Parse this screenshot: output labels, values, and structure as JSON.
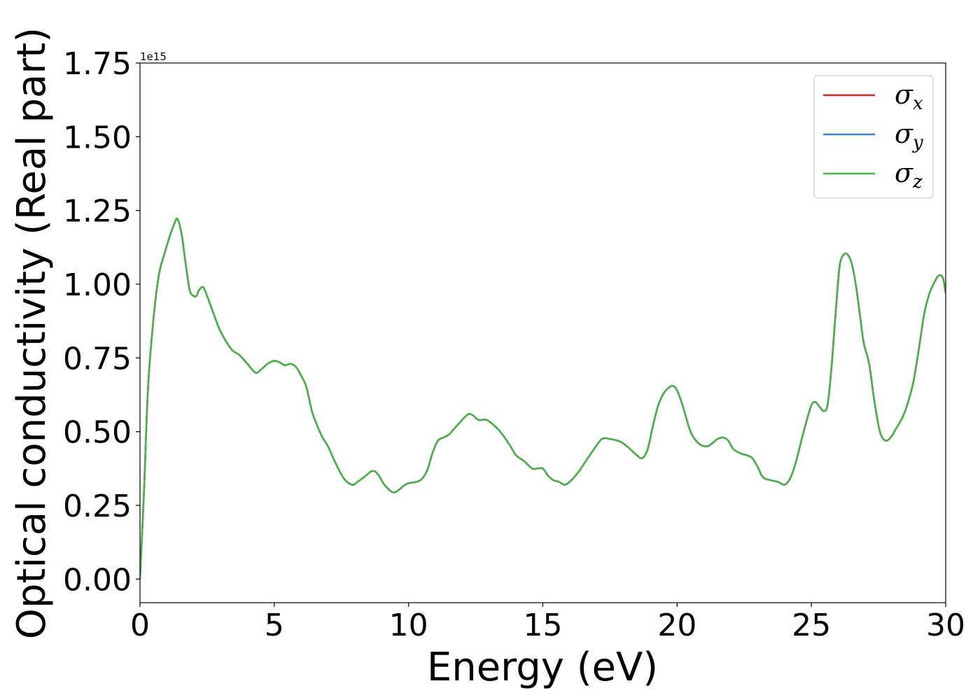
{
  "chart_data": {
    "type": "line",
    "xlabel": "Energy (eV)",
    "ylabel": "Optical conductivity (Real part)",
    "y_offset_text": "1e15",
    "xlim": [
      0,
      30
    ],
    "ylim": [
      -0.08,
      1.75
    ],
    "x_ticks": [
      0,
      5,
      10,
      15,
      20,
      25,
      30
    ],
    "x_tick_labels": [
      "0",
      "5",
      "10",
      "15",
      "20",
      "25",
      "30"
    ],
    "y_ticks": [
      0.0,
      0.25,
      0.5,
      0.75,
      1.0,
      1.25,
      1.5,
      1.75
    ],
    "y_tick_labels": [
      "0.00",
      "0.25",
      "0.50",
      "0.75",
      "1.00",
      "1.25",
      "1.50",
      "1.75"
    ],
    "grid": false,
    "legend_position": "top-right",
    "x": [
      0,
      0.15,
      0.3,
      0.5,
      0.7,
      0.9,
      1.1,
      1.3,
      1.4,
      1.55,
      1.7,
      1.85,
      2.0,
      2.1,
      2.2,
      2.35,
      2.5,
      2.7,
      3.0,
      3.4,
      3.7,
      4.0,
      4.3,
      4.5,
      4.75,
      5.0,
      5.2,
      5.4,
      5.6,
      5.8,
      6.0,
      6.2,
      6.4,
      6.6,
      6.8,
      7.0,
      7.3,
      7.6,
      7.9,
      8.1,
      8.4,
      8.6,
      8.75,
      8.9,
      9.1,
      9.4,
      9.6,
      9.8,
      10.0,
      10.3,
      10.5,
      10.7,
      10.9,
      11.1,
      11.3,
      11.5,
      11.7,
      11.9,
      12.1,
      12.25,
      12.4,
      12.6,
      12.9,
      13.2,
      13.5,
      13.8,
      14.0,
      14.3,
      14.6,
      14.8,
      15.0,
      15.2,
      15.4,
      15.6,
      15.8,
      16.0,
      16.3,
      16.6,
      16.9,
      17.2,
      17.5,
      17.9,
      18.2,
      18.5,
      18.7,
      18.9,
      19.1,
      19.3,
      19.5,
      19.7,
      19.85,
      20.0,
      20.2,
      20.5,
      20.8,
      21.1,
      21.3,
      21.5,
      21.7,
      21.9,
      22.1,
      22.4,
      22.6,
      22.8,
      23.0,
      23.2,
      23.5,
      23.75,
      24.0,
      24.2,
      24.4,
      24.6,
      24.8,
      25.0,
      25.15,
      25.3,
      25.45,
      25.6,
      25.75,
      25.9,
      26.05,
      26.2,
      26.35,
      26.5,
      26.65,
      26.8,
      26.95,
      27.15,
      27.35,
      27.55,
      27.75,
      27.95,
      28.15,
      28.4,
      28.6,
      28.8,
      29.0,
      29.2,
      29.4,
      29.6,
      29.75,
      29.9,
      30.0
    ],
    "series": [
      {
        "name": "σx",
        "color": "#d62728",
        "values": [
          0.0,
          0.3,
          0.65,
          0.88,
          1.03,
          1.1,
          1.16,
          1.21,
          1.22,
          1.17,
          1.07,
          0.98,
          0.96,
          0.96,
          0.98,
          0.99,
          0.96,
          0.91,
          0.84,
          0.78,
          0.76,
          0.73,
          0.7,
          0.71,
          0.73,
          0.74,
          0.735,
          0.725,
          0.73,
          0.72,
          0.69,
          0.65,
          0.57,
          0.52,
          0.48,
          0.45,
          0.39,
          0.34,
          0.32,
          0.33,
          0.35,
          0.365,
          0.365,
          0.35,
          0.32,
          0.295,
          0.3,
          0.315,
          0.325,
          0.33,
          0.34,
          0.37,
          0.43,
          0.47,
          0.48,
          0.49,
          0.51,
          0.53,
          0.55,
          0.56,
          0.555,
          0.54,
          0.54,
          0.52,
          0.49,
          0.45,
          0.42,
          0.4,
          0.375,
          0.375,
          0.375,
          0.35,
          0.335,
          0.33,
          0.32,
          0.33,
          0.36,
          0.4,
          0.44,
          0.475,
          0.475,
          0.465,
          0.445,
          0.42,
          0.41,
          0.44,
          0.52,
          0.59,
          0.63,
          0.65,
          0.655,
          0.64,
          0.59,
          0.5,
          0.46,
          0.45,
          0.46,
          0.475,
          0.48,
          0.47,
          0.44,
          0.425,
          0.42,
          0.41,
          0.38,
          0.345,
          0.335,
          0.33,
          0.32,
          0.34,
          0.39,
          0.46,
          0.53,
          0.59,
          0.6,
          0.585,
          0.57,
          0.59,
          0.72,
          0.9,
          1.06,
          1.1,
          1.1,
          1.07,
          1.0,
          0.9,
          0.8,
          0.73,
          0.6,
          0.5,
          0.47,
          0.48,
          0.51,
          0.55,
          0.6,
          0.67,
          0.78,
          0.9,
          0.97,
          1.01,
          1.03,
          1.02,
          0.97
        ]
      },
      {
        "name": "σy",
        "color": "#3a7dc1",
        "values": [
          0.0,
          0.3,
          0.65,
          0.88,
          1.03,
          1.1,
          1.16,
          1.21,
          1.22,
          1.17,
          1.07,
          0.98,
          0.96,
          0.96,
          0.98,
          0.99,
          0.96,
          0.91,
          0.84,
          0.78,
          0.76,
          0.73,
          0.7,
          0.71,
          0.73,
          0.74,
          0.735,
          0.725,
          0.73,
          0.72,
          0.69,
          0.65,
          0.57,
          0.52,
          0.48,
          0.45,
          0.39,
          0.34,
          0.32,
          0.33,
          0.35,
          0.365,
          0.365,
          0.35,
          0.32,
          0.295,
          0.3,
          0.315,
          0.325,
          0.33,
          0.34,
          0.37,
          0.43,
          0.47,
          0.48,
          0.49,
          0.51,
          0.53,
          0.55,
          0.56,
          0.555,
          0.54,
          0.54,
          0.52,
          0.49,
          0.45,
          0.42,
          0.4,
          0.375,
          0.375,
          0.375,
          0.35,
          0.335,
          0.33,
          0.32,
          0.33,
          0.36,
          0.4,
          0.44,
          0.475,
          0.475,
          0.465,
          0.445,
          0.42,
          0.41,
          0.44,
          0.52,
          0.59,
          0.63,
          0.65,
          0.655,
          0.64,
          0.59,
          0.5,
          0.46,
          0.45,
          0.46,
          0.475,
          0.48,
          0.47,
          0.44,
          0.425,
          0.42,
          0.41,
          0.38,
          0.345,
          0.335,
          0.33,
          0.32,
          0.34,
          0.39,
          0.46,
          0.53,
          0.59,
          0.6,
          0.585,
          0.57,
          0.59,
          0.72,
          0.9,
          1.06,
          1.1,
          1.1,
          1.07,
          1.0,
          0.9,
          0.8,
          0.73,
          0.6,
          0.5,
          0.47,
          0.48,
          0.51,
          0.55,
          0.6,
          0.67,
          0.78,
          0.9,
          0.97,
          1.01,
          1.03,
          1.02,
          0.97
        ]
      },
      {
        "name": "σz",
        "color": "#4daf4a",
        "values": [
          0.0,
          0.3,
          0.65,
          0.88,
          1.03,
          1.1,
          1.16,
          1.21,
          1.22,
          1.17,
          1.07,
          0.98,
          0.96,
          0.96,
          0.98,
          0.99,
          0.96,
          0.91,
          0.84,
          0.78,
          0.76,
          0.73,
          0.7,
          0.71,
          0.73,
          0.74,
          0.735,
          0.725,
          0.73,
          0.72,
          0.69,
          0.65,
          0.57,
          0.52,
          0.48,
          0.45,
          0.39,
          0.34,
          0.32,
          0.33,
          0.35,
          0.365,
          0.365,
          0.35,
          0.32,
          0.295,
          0.3,
          0.315,
          0.325,
          0.33,
          0.34,
          0.37,
          0.43,
          0.47,
          0.48,
          0.49,
          0.51,
          0.53,
          0.55,
          0.56,
          0.555,
          0.54,
          0.54,
          0.52,
          0.49,
          0.45,
          0.42,
          0.4,
          0.375,
          0.375,
          0.375,
          0.35,
          0.335,
          0.33,
          0.32,
          0.33,
          0.36,
          0.4,
          0.44,
          0.475,
          0.475,
          0.465,
          0.445,
          0.42,
          0.41,
          0.44,
          0.52,
          0.59,
          0.63,
          0.65,
          0.655,
          0.64,
          0.59,
          0.5,
          0.46,
          0.45,
          0.46,
          0.475,
          0.48,
          0.47,
          0.44,
          0.425,
          0.42,
          0.41,
          0.38,
          0.345,
          0.335,
          0.33,
          0.32,
          0.34,
          0.39,
          0.46,
          0.53,
          0.59,
          0.6,
          0.585,
          0.57,
          0.59,
          0.72,
          0.9,
          1.06,
          1.1,
          1.1,
          1.07,
          1.0,
          0.9,
          0.8,
          0.73,
          0.6,
          0.5,
          0.47,
          0.48,
          0.51,
          0.55,
          0.6,
          0.67,
          0.78,
          0.9,
          0.97,
          1.01,
          1.03,
          1.02,
          0.97
        ]
      }
    ],
    "legend": [
      {
        "symbol": "σ",
        "subscript": "x",
        "color": "#d62728"
      },
      {
        "symbol": "σ",
        "subscript": "y",
        "color": "#3a7dc1"
      },
      {
        "symbol": "σ",
        "subscript": "z",
        "color": "#4daf4a"
      }
    ]
  }
}
